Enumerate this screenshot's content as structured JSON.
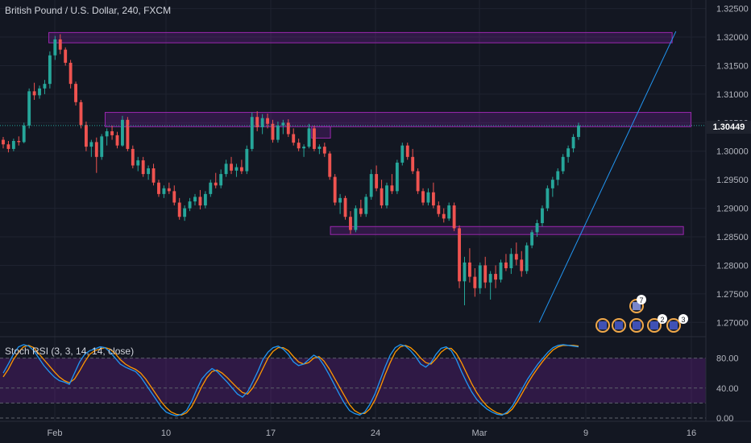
{
  "header": {
    "symbol_title": "British Pound / U.S. Dollar, 240, FXCM"
  },
  "indicator": {
    "title": "Stoch RSI (3, 3, 14, 14, close)",
    "levels": [
      "80.00",
      "40.00",
      "0.00"
    ]
  },
  "price_axis": {
    "ticks": [
      "1.32500",
      "1.32000",
      "1.31500",
      "1.31000",
      "1.30500",
      "1.30000",
      "1.29500",
      "1.29000",
      "1.28500",
      "1.28000",
      "1.27500",
      "1.27000"
    ],
    "last_price": "1.30449"
  },
  "time_axis": {
    "ticks": [
      "Feb",
      "10",
      "17",
      "24",
      "Mar",
      "9",
      "16"
    ]
  },
  "event_badges": [
    "7",
    "2",
    "3"
  ],
  "colors": {
    "background": "#131722",
    "up": "#26a69a",
    "down": "#ef5350",
    "zone_fill": "#7b1fa2",
    "zone_border": "#9c27b0",
    "trendline": "#2196f3",
    "stoch_k": "#2196f3",
    "stoch_d": "#ff9800"
  },
  "chart_data": {
    "type": "candlestick",
    "title": "British Pound / U.S. Dollar, 240, FXCM",
    "ylim": [
      1.2675,
      1.3265
    ],
    "last_price": 1.30449,
    "candles": [
      [
        1.302,
        1.3025,
        1.3005,
        1.3012
      ],
      [
        1.3012,
        1.3018,
        1.2998,
        1.3004
      ],
      [
        1.3004,
        1.3022,
        1.3,
        1.3018
      ],
      [
        1.3018,
        1.3026,
        1.301,
        1.3016
      ],
      [
        1.3016,
        1.305,
        1.3014,
        1.3045
      ],
      [
        1.3045,
        1.311,
        1.304,
        1.3105
      ],
      [
        1.3105,
        1.312,
        1.309,
        1.3098
      ],
      [
        1.3098,
        1.3115,
        1.3092,
        1.311
      ],
      [
        1.311,
        1.3125,
        1.31,
        1.3118
      ],
      [
        1.3118,
        1.3175,
        1.311,
        1.3168
      ],
      [
        1.3168,
        1.3202,
        1.316,
        1.3196
      ],
      [
        1.3196,
        1.3205,
        1.317,
        1.3178
      ],
      [
        1.3178,
        1.3182,
        1.315,
        1.3155
      ],
      [
        1.3155,
        1.316,
        1.311,
        1.3118
      ],
      [
        1.3118,
        1.3122,
        1.308,
        1.3086
      ],
      [
        1.3086,
        1.309,
        1.304,
        1.3046
      ],
      [
        1.3046,
        1.3052,
        1.3,
        1.3008
      ],
      [
        1.3008,
        1.302,
        1.299,
        1.3016
      ],
      [
        1.3016,
        1.3024,
        1.2962,
        1.299
      ],
      [
        1.299,
        1.303,
        1.2985,
        1.3026
      ],
      [
        1.3026,
        1.304,
        1.301,
        1.3035
      ],
      [
        1.3035,
        1.3045,
        1.302,
        1.3028
      ],
      [
        1.3028,
        1.3034,
        1.3005,
        1.301
      ],
      [
        1.301,
        1.3062,
        1.3008,
        1.3055
      ],
      [
        1.3055,
        1.306,
        1.3,
        1.3004
      ],
      [
        1.3004,
        1.301,
        1.297,
        1.2975
      ],
      [
        1.2975,
        1.299,
        1.2965,
        1.2984
      ],
      [
        1.2984,
        1.299,
        1.2955,
        1.296
      ],
      [
        1.296,
        1.2975,
        1.295,
        1.297
      ],
      [
        1.297,
        1.2978,
        1.294,
        1.2945
      ],
      [
        1.2945,
        1.295,
        1.292,
        1.2925
      ],
      [
        1.2925,
        1.294,
        1.2918,
        1.2935
      ],
      [
        1.2935,
        1.2945,
        1.2925,
        1.293
      ],
      [
        1.293,
        1.294,
        1.2905,
        1.291
      ],
      [
        1.291,
        1.2918,
        1.288,
        1.2885
      ],
      [
        1.2885,
        1.2905,
        1.2878,
        1.29
      ],
      [
        1.29,
        1.2918,
        1.2895,
        1.2912
      ],
      [
        1.2912,
        1.2925,
        1.2905,
        1.292
      ],
      [
        1.292,
        1.2932,
        1.2898,
        1.2905
      ],
      [
        1.2905,
        1.293,
        1.29,
        1.2925
      ],
      [
        1.2925,
        1.295,
        1.292,
        1.2945
      ],
      [
        1.2945,
        1.2962,
        1.2935,
        1.294
      ],
      [
        1.294,
        1.2968,
        1.2935,
        1.296
      ],
      [
        1.296,
        1.2985,
        1.2955,
        1.2978
      ],
      [
        1.2978,
        1.299,
        1.296,
        1.2966
      ],
      [
        1.2966,
        1.2978,
        1.2955,
        1.2972
      ],
      [
        1.2972,
        1.2985,
        1.296,
        1.2965
      ],
      [
        1.2965,
        1.301,
        1.296,
        1.3004
      ],
      [
        1.3004,
        1.3068,
        1.3,
        1.306
      ],
      [
        1.306,
        1.307,
        1.3035,
        1.3042
      ],
      [
        1.3042,
        1.3065,
        1.303,
        1.3058
      ],
      [
        1.3058,
        1.3066,
        1.304,
        1.3048
      ],
      [
        1.3048,
        1.3055,
        1.3015,
        1.302
      ],
      [
        1.302,
        1.3052,
        1.3015,
        1.3045
      ],
      [
        1.3045,
        1.3055,
        1.303,
        1.305
      ],
      [
        1.305,
        1.3056,
        1.3025,
        1.303
      ],
      [
        1.303,
        1.304,
        1.301,
        1.3015
      ],
      [
        1.3015,
        1.3022,
        1.3,
        1.3005
      ],
      [
        1.3005,
        1.3012,
        1.299,
        1.3008
      ],
      [
        1.3008,
        1.3048,
        1.3005,
        1.304
      ],
      [
        1.304,
        1.3045,
        1.3,
        1.3004
      ],
      [
        1.3004,
        1.3012,
        1.2995,
        1.3008
      ],
      [
        1.3008,
        1.3015,
        1.299,
        1.2996
      ],
      [
        1.2996,
        1.3,
        1.295,
        1.2955
      ],
      [
        1.2955,
        1.296,
        1.2905,
        1.291
      ],
      [
        1.291,
        1.2925,
        1.289,
        1.2918
      ],
      [
        1.2918,
        1.2922,
        1.288,
        1.2885
      ],
      [
        1.2885,
        1.2895,
        1.2855,
        1.2862
      ],
      [
        1.2862,
        1.2905,
        1.2858,
        1.29
      ],
      [
        1.29,
        1.2915,
        1.2885,
        1.289
      ],
      [
        1.289,
        1.2925,
        1.2885,
        1.292
      ],
      [
        1.292,
        1.2968,
        1.2915,
        1.296
      ],
      [
        1.296,
        1.2975,
        1.293,
        1.2935
      ],
      [
        1.2935,
        1.295,
        1.29,
        1.2905
      ],
      [
        1.2905,
        1.2945,
        1.29,
        1.294
      ],
      [
        1.294,
        1.296,
        1.2925,
        1.293
      ],
      [
        1.293,
        1.2985,
        1.2925,
        1.298
      ],
      [
        1.298,
        1.3015,
        1.2975,
        1.301
      ],
      [
        1.301,
        1.3015,
        1.2985,
        1.299
      ],
      [
        1.299,
        1.3004,
        1.296,
        1.2965
      ],
      [
        1.2965,
        1.297,
        1.2925,
        1.293
      ],
      [
        1.293,
        1.2935,
        1.2905,
        1.291
      ],
      [
        1.291,
        1.2935,
        1.2905,
        1.2928
      ],
      [
        1.2928,
        1.2945,
        1.29,
        1.2905
      ],
      [
        1.2905,
        1.2912,
        1.2885,
        1.289
      ],
      [
        1.289,
        1.29,
        1.2875,
        1.2882
      ],
      [
        1.2882,
        1.291,
        1.2878,
        1.2905
      ],
      [
        1.2905,
        1.291,
        1.286,
        1.2865
      ],
      [
        1.2865,
        1.287,
        1.276,
        1.2772
      ],
      [
        1.2772,
        1.2815,
        1.273,
        1.2805
      ],
      [
        1.2805,
        1.283,
        1.277,
        1.278
      ],
      [
        1.278,
        1.2795,
        1.2745,
        1.276
      ],
      [
        1.276,
        1.2805,
        1.275,
        1.28
      ],
      [
        1.28,
        1.2815,
        1.276,
        1.277
      ],
      [
        1.277,
        1.279,
        1.274,
        1.2785
      ],
      [
        1.2785,
        1.28,
        1.276,
        1.2775
      ],
      [
        1.2775,
        1.281,
        1.277,
        1.2805
      ],
      [
        1.2805,
        1.282,
        1.279,
        1.2795
      ],
      [
        1.2795,
        1.283,
        1.2785,
        1.282
      ],
      [
        1.282,
        1.284,
        1.28,
        1.281
      ],
      [
        1.281,
        1.2825,
        1.278,
        1.279
      ],
      [
        1.279,
        1.284,
        1.2785,
        1.2835
      ],
      [
        1.2835,
        1.2862,
        1.283,
        1.2858
      ],
      [
        1.2858,
        1.288,
        1.285,
        1.2874
      ],
      [
        1.2874,
        1.2905,
        1.2868,
        1.29
      ],
      [
        1.29,
        1.294,
        1.2895,
        1.2935
      ],
      [
        1.2935,
        1.2955,
        1.292,
        1.295
      ],
      [
        1.295,
        1.297,
        1.294,
        1.2965
      ],
      [
        1.2965,
        1.2995,
        1.296,
        1.299
      ],
      [
        1.299,
        1.301,
        1.298,
        1.3005
      ],
      [
        1.3005,
        1.303,
        1.2998,
        1.3025
      ],
      [
        1.3025,
        1.305,
        1.302,
        1.3045
      ]
    ],
    "zones": [
      {
        "from": 1.319,
        "to": 1.3208,
        "x_start": 0.065,
        "x_end": 0.895
      },
      {
        "from": 1.3043,
        "to": 1.3068,
        "x_start": 0.14,
        "x_end": 0.92
      },
      {
        "from": 1.3023,
        "to": 1.3043,
        "x_start": 0.415,
        "x_end": 0.44
      },
      {
        "from": 1.2854,
        "to": 1.2868,
        "x_start": 0.44,
        "x_end": 0.91
      }
    ],
    "trendline": [
      [
        0.718,
        1.27
      ],
      [
        0.9,
        1.321
      ]
    ],
    "stoch_rsi": {
      "ylim": [
        0,
        100
      ],
      "bands": [
        80,
        20
      ],
      "k": [
        60,
        72,
        85,
        95,
        98,
        96,
        90,
        80,
        70,
        62,
        55,
        50,
        48,
        45,
        60,
        75,
        85,
        90,
        92,
        95,
        94,
        88,
        80,
        72,
        68,
        65,
        62,
        55,
        45,
        35,
        25,
        15,
        8,
        5,
        3,
        5,
        10,
        22,
        38,
        52,
        60,
        66,
        62,
        55,
        48,
        40,
        32,
        28,
        35,
        48,
        62,
        78,
        88,
        94,
        96,
        92,
        85,
        75,
        70,
        72,
        78,
        84,
        80,
        70,
        58,
        45,
        32,
        20,
        10,
        6,
        4,
        8,
        18,
        32,
        50,
        68,
        84,
        94,
        98,
        96,
        90,
        82,
        72,
        68,
        74,
        85,
        93,
        95,
        90,
        78,
        62,
        48,
        35,
        25,
        18,
        12,
        8,
        5,
        4,
        8,
        16,
        28,
        40,
        52,
        62,
        72,
        80,
        88,
        94,
        97,
        98,
        97,
        96,
        95
      ],
      "d": [
        55,
        65,
        78,
        88,
        95,
        97,
        94,
        86,
        78,
        70,
        62,
        55,
        50,
        47,
        52,
        63,
        75,
        85,
        90,
        92,
        94,
        92,
        86,
        78,
        72,
        68,
        65,
        60,
        52,
        42,
        32,
        22,
        14,
        8,
        5,
        4,
        7,
        15,
        28,
        42,
        54,
        62,
        64,
        60,
        54,
        47,
        40,
        34,
        32,
        40,
        52,
        66,
        80,
        89,
        94,
        94,
        90,
        82,
        75,
        72,
        74,
        80,
        82,
        76,
        66,
        54,
        42,
        30,
        18,
        10,
        6,
        6,
        12,
        24,
        40,
        58,
        74,
        88,
        95,
        97,
        94,
        88,
        80,
        74,
        72,
        79,
        88,
        93,
        93,
        86,
        74,
        60,
        46,
        34,
        24,
        16,
        11,
        7,
        5,
        6,
        12,
        22,
        34,
        46,
        57,
        67,
        76,
        84,
        91,
        95,
        97,
        97,
        97,
        96
      ]
    }
  }
}
